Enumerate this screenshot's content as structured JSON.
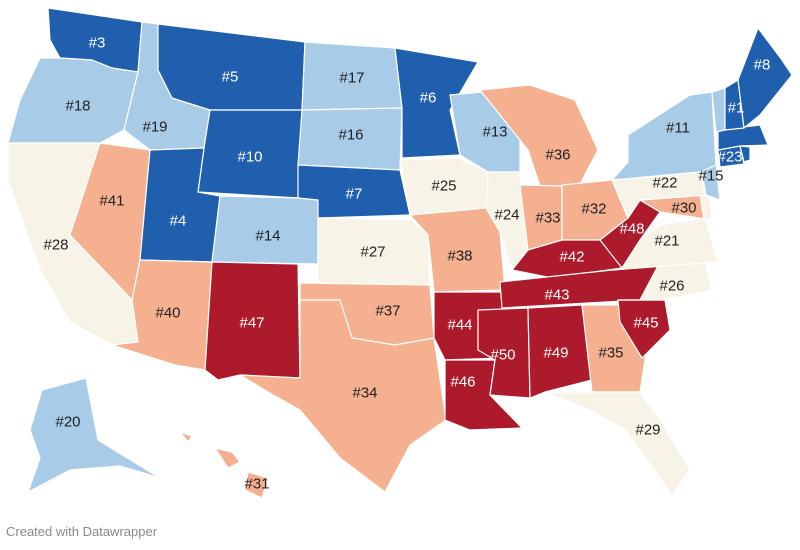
{
  "credit": "Created with Datawrapper",
  "colors": {
    "tier1": "#1f5fad",
    "tier2": "#a8cbe8",
    "tier3": "#f7f4e7",
    "tier4": "#f5b090",
    "tier5": "#ad1a2b"
  },
  "states": [
    {
      "abbr": "WA",
      "rank": "#3",
      "tier": "tier1"
    },
    {
      "abbr": "OR",
      "rank": "#18",
      "tier": "tier2"
    },
    {
      "abbr": "CA",
      "rank": "#28",
      "tier": "tier3"
    },
    {
      "abbr": "ID",
      "rank": "#19",
      "tier": "tier2"
    },
    {
      "abbr": "NV",
      "rank": "#41",
      "tier": "tier4"
    },
    {
      "abbr": "MT",
      "rank": "#5",
      "tier": "tier1"
    },
    {
      "abbr": "WY",
      "rank": "#10",
      "tier": "tier1"
    },
    {
      "abbr": "UT",
      "rank": "#4",
      "tier": "tier1"
    },
    {
      "abbr": "AZ",
      "rank": "#40",
      "tier": "tier4"
    },
    {
      "abbr": "CO",
      "rank": "#14",
      "tier": "tier2"
    },
    {
      "abbr": "NM",
      "rank": "#47",
      "tier": "tier5"
    },
    {
      "abbr": "ND",
      "rank": "#17",
      "tier": "tier2"
    },
    {
      "abbr": "SD",
      "rank": "#16",
      "tier": "tier2"
    },
    {
      "abbr": "NE",
      "rank": "#7",
      "tier": "tier1"
    },
    {
      "abbr": "KS",
      "rank": "#27",
      "tier": "tier3"
    },
    {
      "abbr": "OK",
      "rank": "#37",
      "tier": "tier4"
    },
    {
      "abbr": "TX",
      "rank": "#34",
      "tier": "tier4"
    },
    {
      "abbr": "MN",
      "rank": "#6",
      "tier": "tier1"
    },
    {
      "abbr": "IA",
      "rank": "#25",
      "tier": "tier3"
    },
    {
      "abbr": "MO",
      "rank": "#38",
      "tier": "tier4"
    },
    {
      "abbr": "AR",
      "rank": "#44",
      "tier": "tier5"
    },
    {
      "abbr": "LA",
      "rank": "#46",
      "tier": "tier5"
    },
    {
      "abbr": "WI",
      "rank": "#13",
      "tier": "tier2"
    },
    {
      "abbr": "IL",
      "rank": "#24",
      "tier": "tier3"
    },
    {
      "abbr": "MI",
      "rank": "#36",
      "tier": "tier4"
    },
    {
      "abbr": "IN",
      "rank": "#33",
      "tier": "tier4"
    },
    {
      "abbr": "OH",
      "rank": "#32",
      "tier": "tier4"
    },
    {
      "abbr": "KY",
      "rank": "#42",
      "tier": "tier5"
    },
    {
      "abbr": "TN",
      "rank": "#43",
      "tier": "tier5"
    },
    {
      "abbr": "MS",
      "rank": "#50",
      "tier": "tier5"
    },
    {
      "abbr": "AL",
      "rank": "#49",
      "tier": "tier5"
    },
    {
      "abbr": "GA",
      "rank": "#35",
      "tier": "tier4"
    },
    {
      "abbr": "FL",
      "rank": "#29",
      "tier": "tier3"
    },
    {
      "abbr": "SC",
      "rank": "#45",
      "tier": "tier5"
    },
    {
      "abbr": "NC",
      "rank": "#26",
      "tier": "tier3"
    },
    {
      "abbr": "VA",
      "rank": "#21",
      "tier": "tier3"
    },
    {
      "abbr": "WV",
      "rank": "#48",
      "tier": "tier5"
    },
    {
      "abbr": "MD",
      "rank": "#30",
      "tier": "tier4"
    },
    {
      "abbr": "DE",
      "rank": "",
      "tier": "tier3"
    },
    {
      "abbr": "PA",
      "rank": "#22",
      "tier": "tier3"
    },
    {
      "abbr": "NJ",
      "rank": "#15",
      "tier": "tier2"
    },
    {
      "abbr": "NY",
      "rank": "#11",
      "tier": "tier2"
    },
    {
      "abbr": "CT",
      "rank": "#23",
      "tier": "tier1"
    },
    {
      "abbr": "RI",
      "rank": "",
      "tier": "tier1"
    },
    {
      "abbr": "MA",
      "rank": "",
      "tier": "tier1"
    },
    {
      "abbr": "VT",
      "rank": "",
      "tier": "tier2"
    },
    {
      "abbr": "NH",
      "rank": "#1",
      "tier": "tier1"
    },
    {
      "abbr": "ME",
      "rank": "#8",
      "tier": "tier1"
    },
    {
      "abbr": "AK",
      "rank": "#20",
      "tier": "tier2"
    },
    {
      "abbr": "HI",
      "rank": "#31",
      "tier": "tier4"
    }
  ]
}
